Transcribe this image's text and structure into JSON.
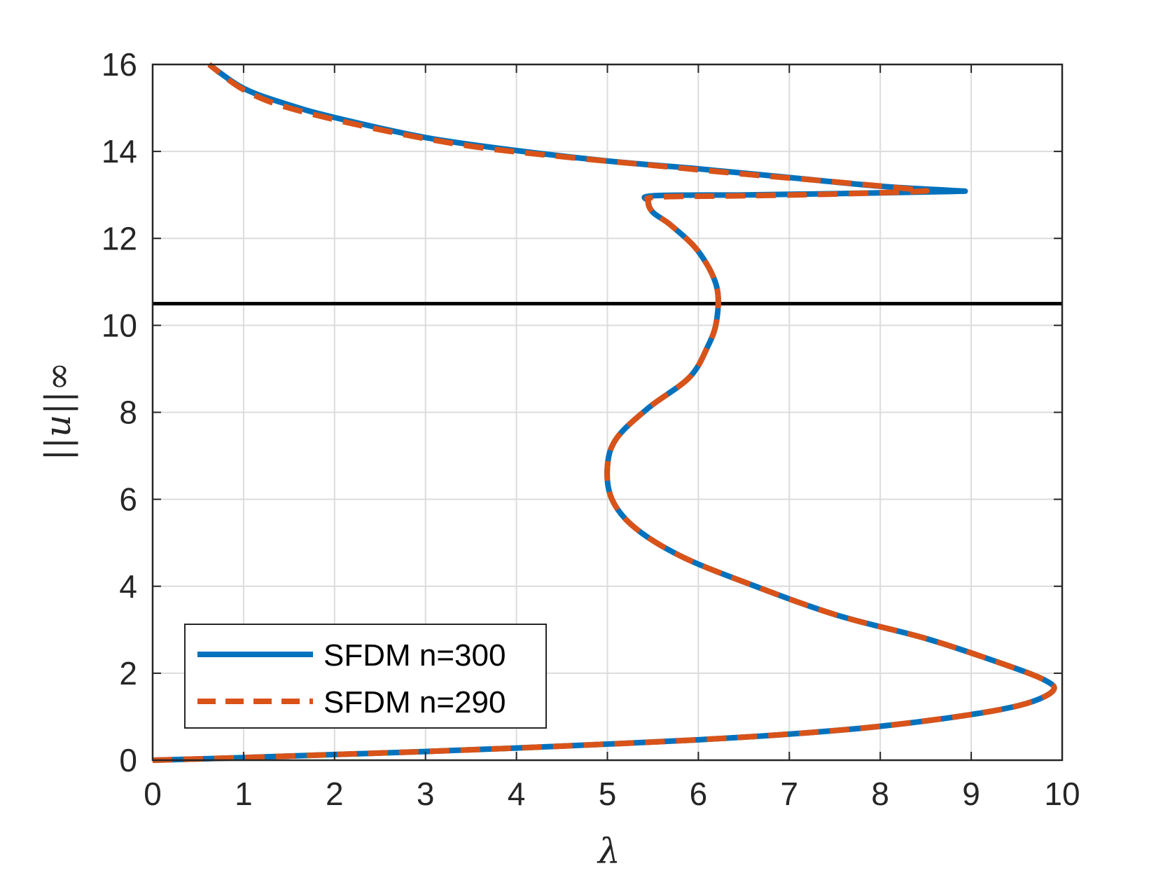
{
  "chart_data": {
    "type": "line",
    "xlabel": "λ",
    "ylabel": "||u||∞",
    "xlim": [
      0,
      10
    ],
    "ylim": [
      0,
      16
    ],
    "xticks": [
      "0",
      "1",
      "2",
      "3",
      "4",
      "5",
      "6",
      "7",
      "8",
      "9",
      "10"
    ],
    "yticks": [
      "0",
      "2",
      "4",
      "6",
      "8",
      "10",
      "12",
      "14",
      "16"
    ],
    "grid": true,
    "legend_position": "bottom-left",
    "reference_line": {
      "orientation": "horizontal",
      "y": 10.5,
      "color": "#000000"
    },
    "series": [
      {
        "name": "SFDM n=300",
        "style": "solid",
        "color": "#0072BD",
        "x": [
          0,
          1,
          2,
          3,
          4,
          5,
          6,
          7,
          8,
          9,
          9.6,
          9.9,
          9.8,
          9.3,
          8.5,
          7.5,
          6.5,
          5.8,
          5.3,
          5.05,
          5.0,
          5.1,
          5.45,
          5.9,
          6.1,
          6.2,
          6.2,
          6.0,
          5.7,
          5.5,
          5.45,
          5.5,
          6.5,
          7.5,
          8.8,
          8.8,
          8.0,
          7.0,
          6.0,
          5.0,
          4.0,
          3.0,
          2.0,
          1.5,
          1.0,
          0.62
        ],
        "y": [
          0,
          0.06,
          0.13,
          0.2,
          0.28,
          0.37,
          0.47,
          0.6,
          0.78,
          1.05,
          1.3,
          1.6,
          1.85,
          2.25,
          2.8,
          3.35,
          4.1,
          4.7,
          5.35,
          6.0,
          6.75,
          7.4,
          8.1,
          8.8,
          9.5,
          10.1,
          10.9,
          11.7,
          12.3,
          12.6,
          12.85,
          12.98,
          13.0,
          13.03,
          13.08,
          13.1,
          13.2,
          13.4,
          13.6,
          13.78,
          14.02,
          14.32,
          14.78,
          15.07,
          15.45,
          16.0
        ]
      },
      {
        "name": "SFDM n=290",
        "style": "dashed",
        "color": "#D95319",
        "x": [
          0,
          1,
          2,
          3,
          4,
          5,
          6,
          7,
          8,
          9,
          9.6,
          9.9,
          9.8,
          9.3,
          8.5,
          7.5,
          6.5,
          5.8,
          5.3,
          5.05,
          5.0,
          5.1,
          5.45,
          5.9,
          6.1,
          6.2,
          6.2,
          6.0,
          5.7,
          5.5,
          5.45,
          5.55,
          6.5,
          7.5,
          8.4,
          8.4,
          7.5,
          6.5,
          5.5,
          4.5,
          3.5,
          2.5,
          1.5,
          1.0,
          0.62
        ],
        "y": [
          0,
          0.06,
          0.13,
          0.2,
          0.28,
          0.37,
          0.47,
          0.6,
          0.78,
          1.05,
          1.3,
          1.6,
          1.85,
          2.25,
          2.8,
          3.35,
          4.1,
          4.7,
          5.35,
          6.0,
          6.75,
          7.4,
          8.1,
          8.8,
          9.5,
          10.1,
          10.9,
          11.7,
          12.3,
          12.6,
          12.85,
          12.95,
          12.98,
          13.02,
          13.08,
          13.12,
          13.3,
          13.48,
          13.68,
          13.88,
          14.12,
          14.5,
          15.0,
          15.42,
          16.0
        ]
      }
    ]
  }
}
